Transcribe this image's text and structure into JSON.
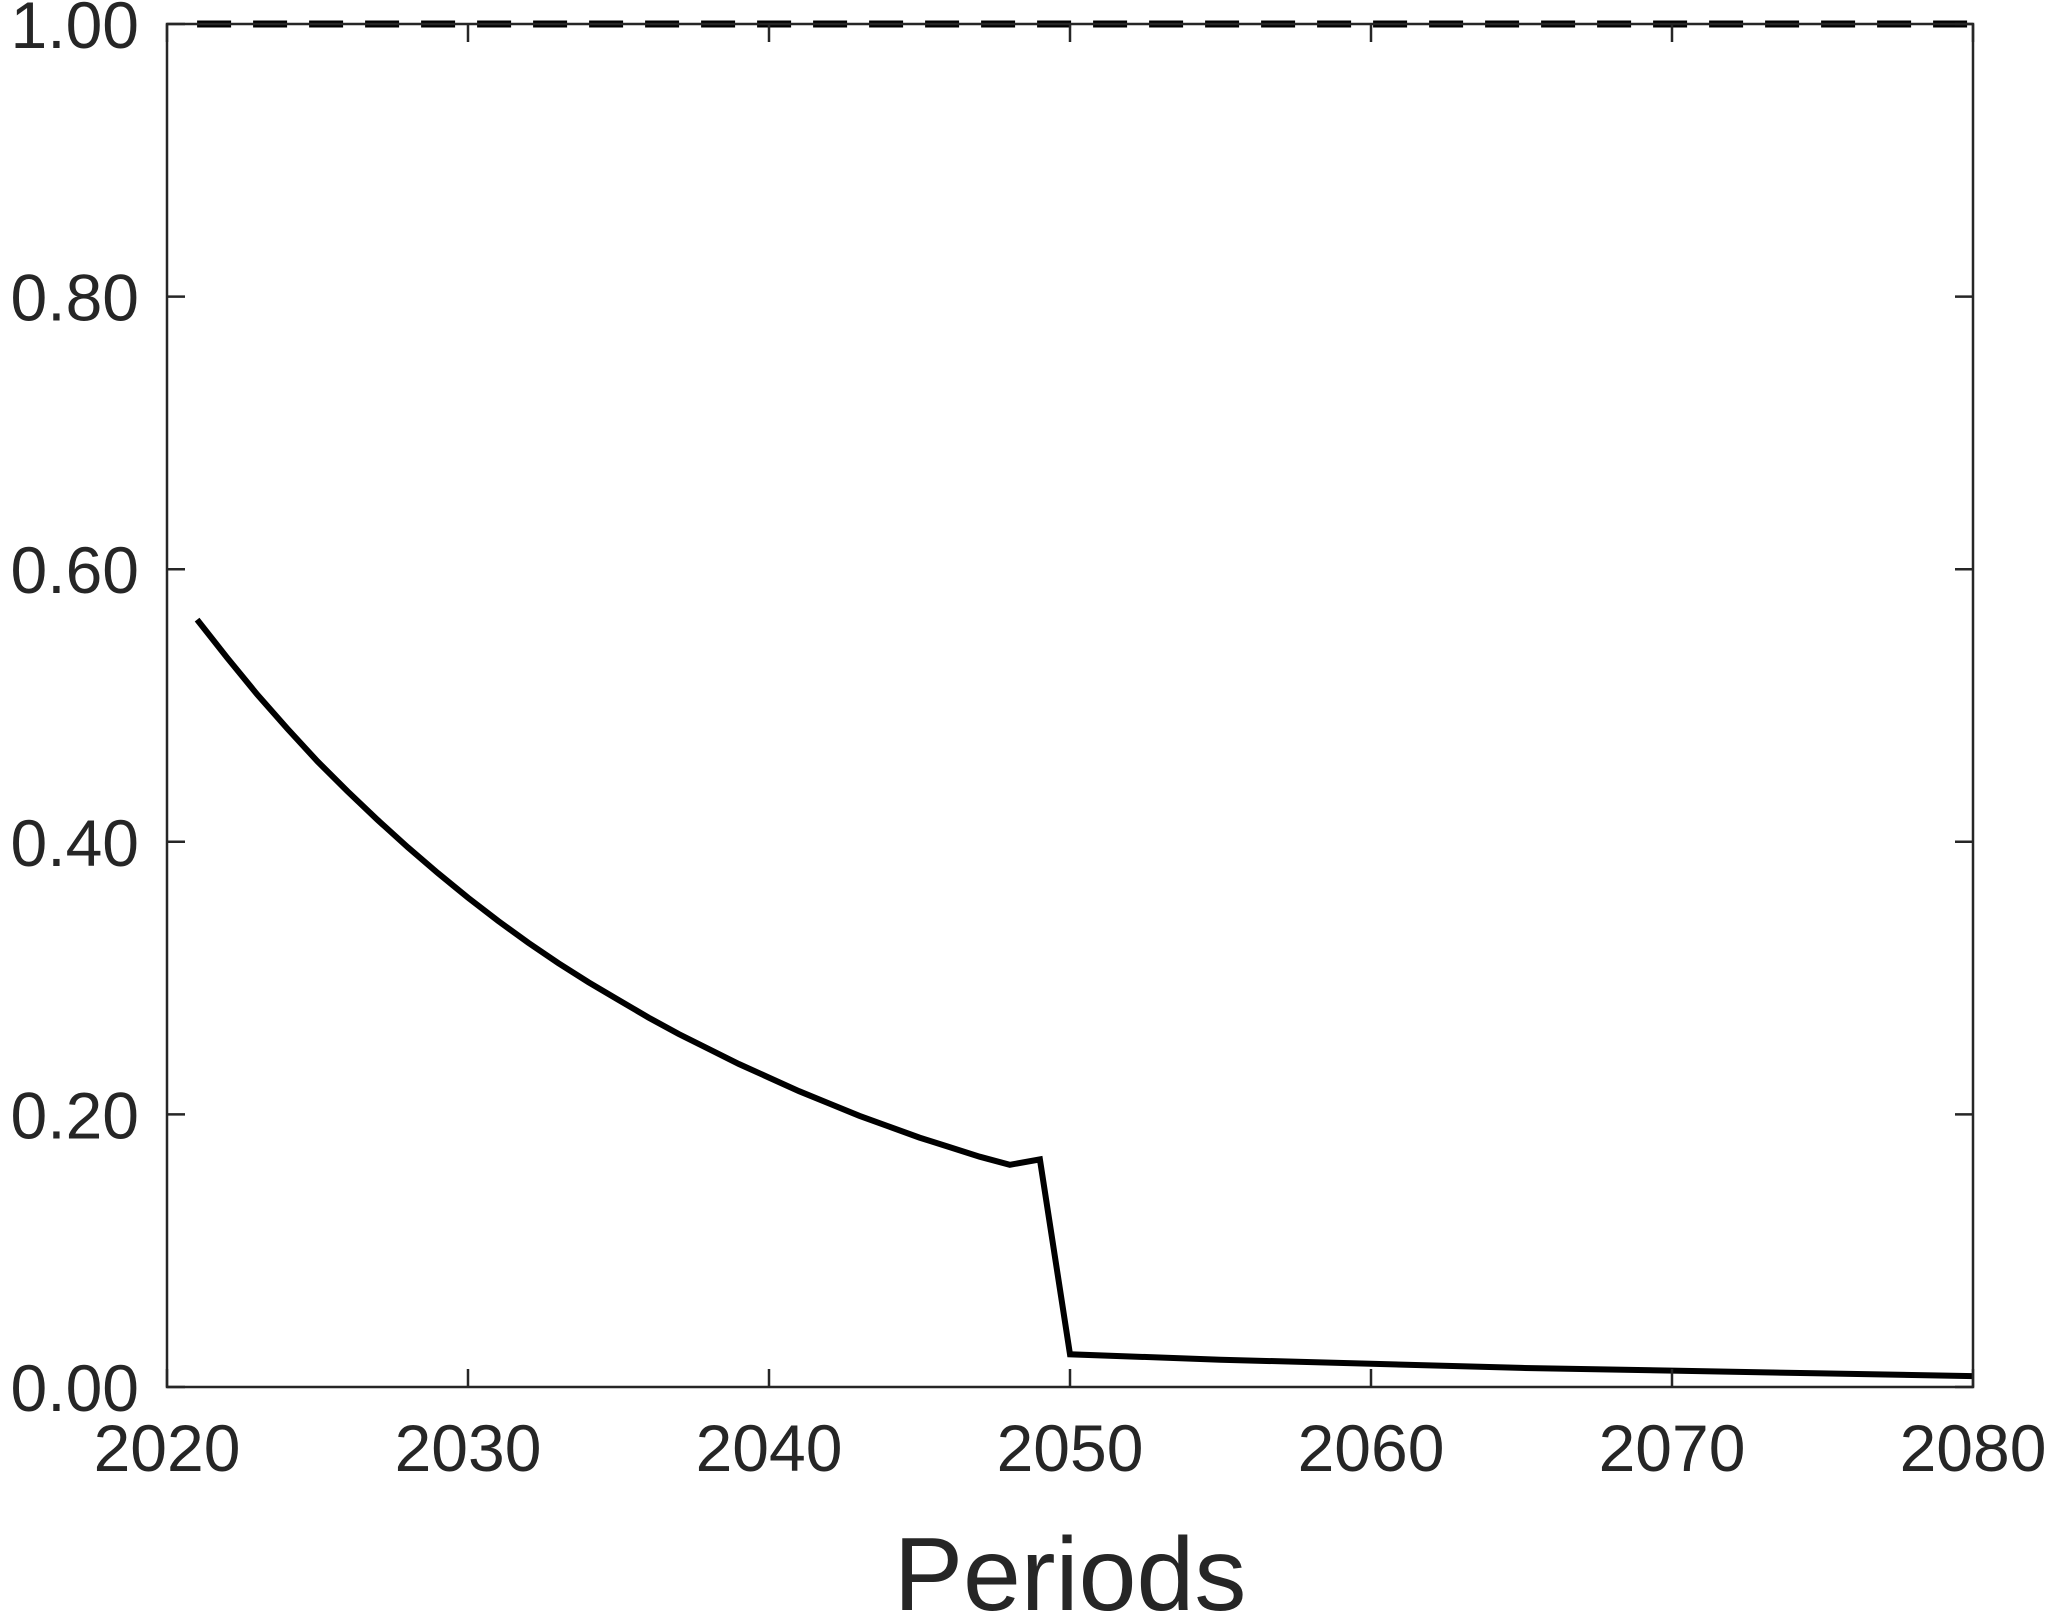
{
  "chart_data": {
    "type": "line",
    "title": "",
    "xlabel": "Periods",
    "ylabel": "",
    "xlim": [
      2020,
      2080
    ],
    "ylim": [
      0,
      1
    ],
    "x_ticks": [
      2020,
      2030,
      2040,
      2050,
      2060,
      2070,
      2080
    ],
    "x_tick_labels": [
      "2020",
      "2030",
      "2040",
      "2050",
      "2060",
      "2070",
      "2080"
    ],
    "y_ticks": [
      0,
      0.2,
      0.4,
      0.6,
      0.8,
      1.0
    ],
    "y_tick_labels": [
      "0.00",
      "0.20",
      "0.40",
      "0.60",
      "0.80",
      "1.00"
    ],
    "grid": false,
    "legend": "none",
    "series": [
      {
        "style": "solid",
        "color": "#000000",
        "x": [
          2021,
          2022,
          2023,
          2024,
          2025,
          2026,
          2027,
          2028,
          2029,
          2030,
          2031,
          2032,
          2033,
          2034,
          2035,
          2036,
          2037,
          2038,
          2039,
          2040,
          2041,
          2042,
          2043,
          2044,
          2045,
          2046,
          2047,
          2048,
          2049,
          2050,
          2055,
          2060,
          2065,
          2070,
          2075,
          2080
        ],
        "values": [
          0.563,
          0.535,
          0.508,
          0.483,
          0.459,
          0.437,
          0.416,
          0.396,
          0.377,
          0.359,
          0.342,
          0.326,
          0.311,
          0.297,
          0.284,
          0.271,
          0.259,
          0.248,
          0.237,
          0.227,
          0.217,
          0.208,
          0.199,
          0.191,
          0.183,
          0.176,
          0.169,
          0.163,
          0.167,
          0.024,
          0.02,
          0.017,
          0.014,
          0.012,
          0.01,
          0.008
        ]
      },
      {
        "style": "dashed",
        "color": "#000000",
        "x": [
          2021,
          2080
        ],
        "values": [
          1.0,
          1.0
        ]
      }
    ]
  }
}
